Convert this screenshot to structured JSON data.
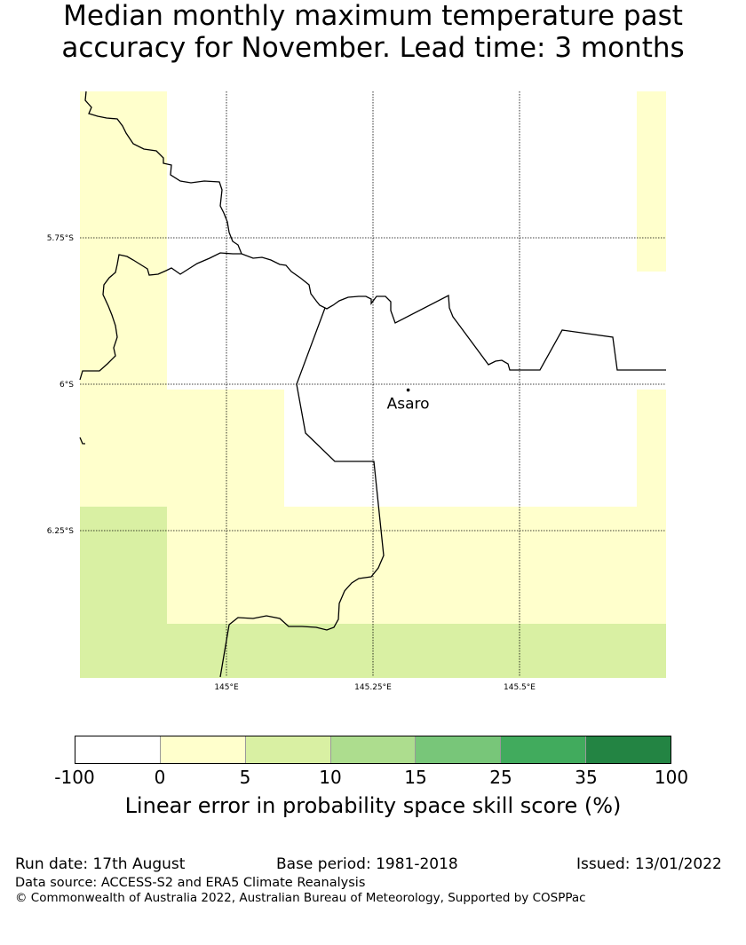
{
  "title": {
    "line1": "Median monthly maximum temperature past",
    "line2": "accuracy for November. Lead time: 3 months"
  },
  "map": {
    "lat_labels": [
      "5.75°S",
      "6°S",
      "6.25°S"
    ],
    "lon_labels": [
      "145°E",
      "145.25°E",
      "145.5°E"
    ],
    "place": {
      "name": "Asaro",
      "lon": 145.31,
      "lat": -6.01
    },
    "extent": {
      "lon_min": 144.75,
      "lon_max": 145.75,
      "lat_min": -6.5,
      "lat_max": -5.5
    },
    "cell_colors": {
      "none": "#ffffff",
      "0-5": "#ffffcc",
      "5-10": "#d9f0a3"
    }
  },
  "colorbar": {
    "colors": [
      "#ffffff",
      "#ffffcc",
      "#d9f0a3",
      "#addd8e",
      "#78c679",
      "#41ab5d",
      "#238443"
    ],
    "ticks": [
      "-100",
      "0",
      "5",
      "10",
      "15",
      "25",
      "35",
      "100"
    ],
    "label": "Linear error in probability space skill score (%)"
  },
  "footer": {
    "run_date": "Run date: 17th August",
    "base_period": "Base period: 1981-2018",
    "issued": "Issued: 13/01/2022",
    "data_source": "Data source: ACCESS-S2 and ERA5 Climate Reanalysis",
    "copyright": "© Commonwealth of Australia 2022, Australian Bureau of Meteorology, Supported by COSPPac"
  }
}
